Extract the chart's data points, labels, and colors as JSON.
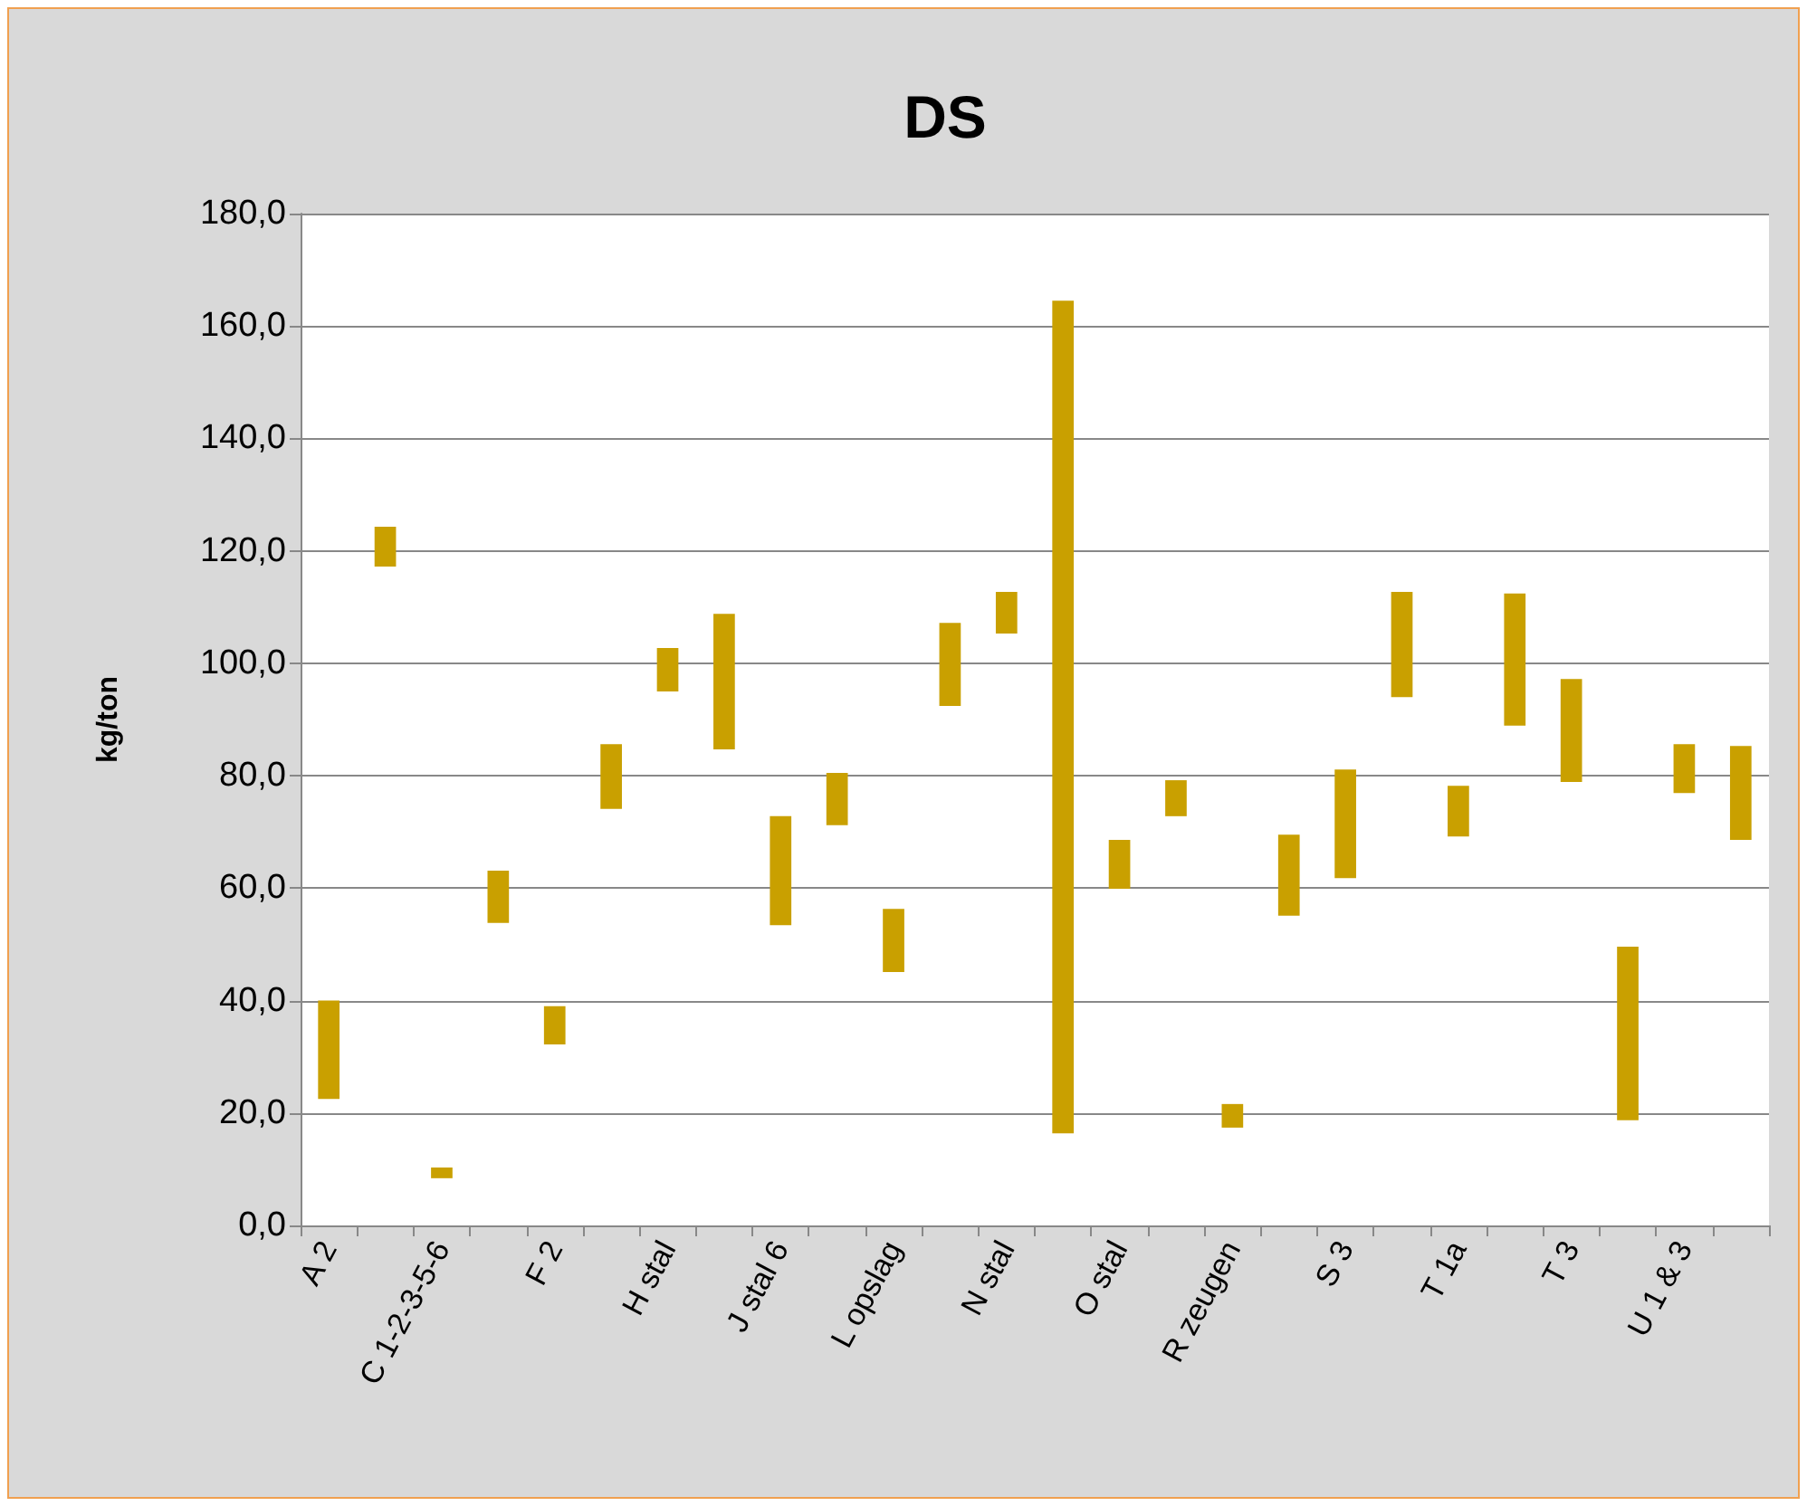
{
  "chart_data": {
    "type": "bar",
    "title": "DS",
    "ylabel": "kg/ton",
    "categories": [
      "A 2",
      null,
      "C 1-2-3-5-6",
      null,
      "F 2",
      null,
      "H stal",
      null,
      "J stal 6",
      null,
      "L opslag",
      null,
      "N stal",
      null,
      "O stal",
      null,
      "R zeugen",
      null,
      "S 3",
      null,
      "T 1a",
      null,
      "T 3",
      null,
      "U 1 & 3",
      null
    ],
    "base": [
      22.5,
      117.2,
      8.4,
      53.8,
      32.2,
      74.1,
      95.0,
      84.7,
      53.4,
      71.2,
      45.1,
      92.4,
      105.3,
      16.4,
      59.9,
      72.8,
      17.4,
      55.1,
      61.8,
      94.0,
      69.2,
      88.9,
      78.9,
      18.7,
      76.9,
      68.6
    ],
    "values": [
      17.5,
      7.1,
      1.9,
      9.3,
      6.8,
      11.5,
      7.7,
      24.1,
      19.4,
      9.3,
      11.2,
      14.8,
      7.4,
      148.1,
      8.7,
      6.4,
      4.2,
      14.4,
      19.3,
      18.7,
      9.0,
      23.5,
      18.3,
      30.9,
      8.7,
      16.7
    ],
    "color": "#c9a000",
    "ylim": [
      0,
      180
    ],
    "yticks": [
      {
        "value": 0,
        "label": "0,0"
      },
      {
        "value": 20,
        "label": "20,0"
      },
      {
        "value": 40,
        "label": "40,0"
      },
      {
        "value": 60,
        "label": "60,0"
      },
      {
        "value": 80,
        "label": "80,0"
      },
      {
        "value": 100,
        "label": "100,0"
      },
      {
        "value": 120,
        "label": "120,0"
      },
      {
        "value": 140,
        "label": "140,0"
      },
      {
        "value": 160,
        "label": "160,0"
      },
      {
        "value": 180,
        "label": "180,0"
      }
    ],
    "grid": "y"
  }
}
